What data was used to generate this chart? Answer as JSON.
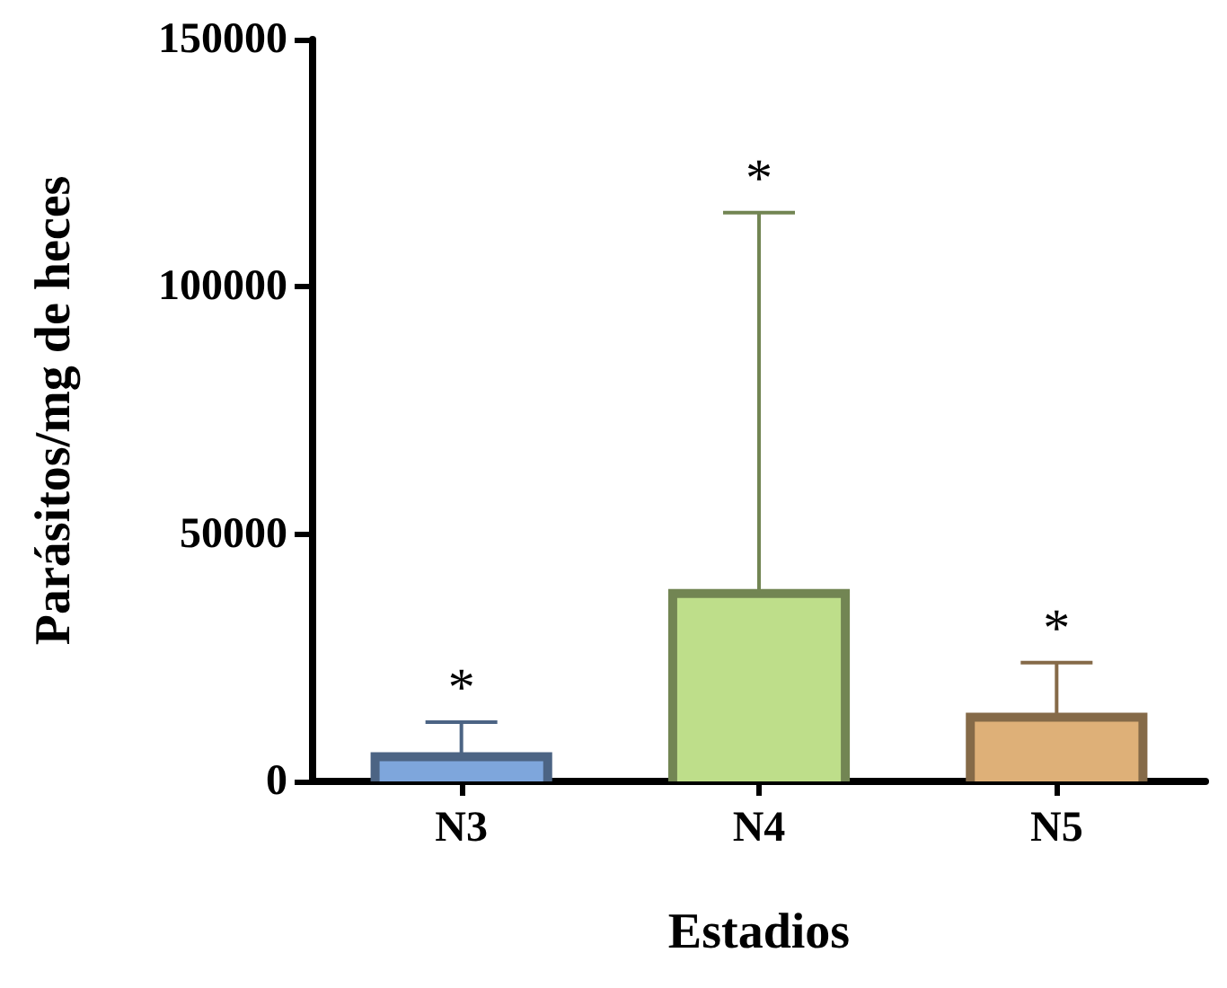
{
  "chart_data": {
    "type": "bar",
    "xlabel": "Estadios",
    "ylabel": "Parásitos/mg de heces",
    "categories": [
      "N3",
      "N4",
      "N5"
    ],
    "values": [
      5000,
      38000,
      13000
    ],
    "colors": [
      "#7ea6dc",
      "#bede8a",
      "#deb078"
    ],
    "errors": [
      [
        5000,
        12000
      ],
      [
        38000,
        115000
      ],
      [
        13000,
        24000
      ]
    ],
    "ylim": [
      0,
      150000
    ],
    "yticks": [
      0,
      50000,
      100000,
      150000
    ],
    "grid": false,
    "annotations": [
      {
        "text": "*",
        "x": "N3",
        "y": 12000
      },
      {
        "text": "*",
        "x": "N4",
        "y": 115000
      },
      {
        "text": "*",
        "x": "N5",
        "y": 24000
      }
    ]
  }
}
